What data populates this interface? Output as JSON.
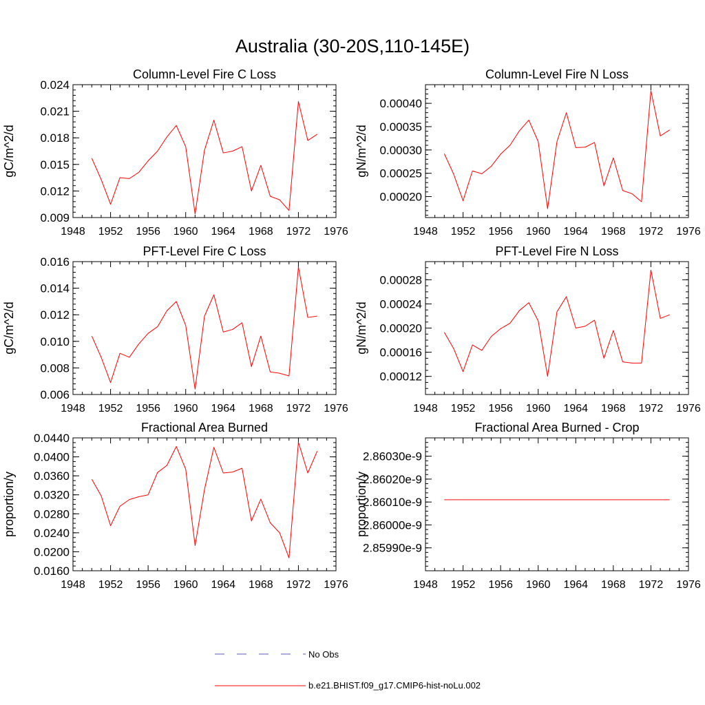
{
  "figure": {
    "title": "Australia (30-20S,110-145E)"
  },
  "legend": {
    "entries": [
      {
        "label": "No Obs",
        "color": "#5a5ab4",
        "style": "dashed"
      },
      {
        "label": "b.e21.BHIST.f09_g17.CMIP6-hist-noLu.002",
        "color": "#ff0000",
        "style": "solid"
      }
    ]
  },
  "chart_data": [
    {
      "type": "line",
      "title": "Column-Level Fire C Loss",
      "ylabel": "gC/m^2/d",
      "xlim": [
        1948,
        1976
      ],
      "xticks": [
        "1948",
        "1952",
        "1956",
        "1960",
        "1964",
        "1968",
        "1972",
        "1976"
      ],
      "ylim": [
        0.009,
        0.024
      ],
      "yticks": [
        "0.009",
        "0.012",
        "0.015",
        "0.018",
        "0.021",
        "0.024"
      ],
      "ytick_values": [
        0.009,
        0.012,
        0.015,
        0.018,
        0.021,
        0.024
      ],
      "yminor_step": 0.0006,
      "series": [
        {
          "color": "#ff0000",
          "x": [
            1950,
            1951,
            1952,
            1953,
            1954,
            1955,
            1956,
            1957,
            1958,
            1959,
            1960,
            1961,
            1962,
            1963,
            1964,
            1965,
            1966,
            1967,
            1968,
            1969,
            1970,
            1971,
            1972,
            1973,
            1974
          ],
          "y": [
            0.0157,
            0.0133,
            0.0105,
            0.0135,
            0.0134,
            0.0141,
            0.0154,
            0.0165,
            0.0181,
            0.0194,
            0.017,
            0.0094,
            0.0166,
            0.02,
            0.0163,
            0.0165,
            0.017,
            0.012,
            0.0149,
            0.0114,
            0.011,
            0.0098,
            0.0221,
            0.0177,
            0.0184
          ]
        }
      ]
    },
    {
      "type": "line",
      "title": "Column-Level Fire N Loss",
      "ylabel": "gN/m^2/d",
      "xlim": [
        1948,
        1976
      ],
      "xticks": [
        "1948",
        "1952",
        "1956",
        "1960",
        "1964",
        "1968",
        "1972",
        "1976"
      ],
      "ylim": [
        0.000155,
        0.00044
      ],
      "yticks": [
        "0.00020",
        "0.00025",
        "0.00030",
        "0.00035",
        "0.00040"
      ],
      "ytick_values": [
        0.0002,
        0.00025,
        0.0003,
        0.00035,
        0.0004
      ],
      "yminor_step": 1e-05,
      "series": [
        {
          "color": "#ff0000",
          "x": [
            1950,
            1951,
            1952,
            1953,
            1954,
            1955,
            1956,
            1957,
            1958,
            1959,
            1960,
            1961,
            1962,
            1963,
            1964,
            1965,
            1966,
            1967,
            1968,
            1969,
            1970,
            1971,
            1972,
            1973,
            1974
          ],
          "y": [
            0.000292,
            0.000248,
            0.000191,
            0.000255,
            0.000249,
            0.000265,
            0.000291,
            0.00031,
            0.000341,
            0.000364,
            0.000318,
            0.000174,
            0.000318,
            0.00038,
            0.000305,
            0.000306,
            0.000316,
            0.000223,
            0.000283,
            0.000213,
            0.000206,
            0.000189,
            0.000427,
            0.00033,
            0.000343
          ]
        }
      ]
    },
    {
      "type": "line",
      "title": "PFT-Level Fire C Loss",
      "ylabel": "gC/m^2/d",
      "xlim": [
        1948,
        1976
      ],
      "xticks": [
        "1948",
        "1952",
        "1956",
        "1960",
        "1964",
        "1968",
        "1972",
        "1976"
      ],
      "ylim": [
        0.006,
        0.016
      ],
      "yticks": [
        "0.006",
        "0.008",
        "0.010",
        "0.012",
        "0.014",
        "0.016"
      ],
      "ytick_values": [
        0.006,
        0.008,
        0.01,
        0.012,
        0.014,
        0.016
      ],
      "yminor_step": 0.0004,
      "series": [
        {
          "color": "#ff0000",
          "x": [
            1950,
            1951,
            1952,
            1953,
            1954,
            1955,
            1956,
            1957,
            1958,
            1959,
            1960,
            1961,
            1962,
            1963,
            1964,
            1965,
            1966,
            1967,
            1968,
            1969,
            1970,
            1971,
            1972,
            1973,
            1974
          ],
          "y": [
            0.0104,
            0.0088,
            0.0069,
            0.0091,
            0.0088,
            0.0098,
            0.0106,
            0.0111,
            0.0123,
            0.013,
            0.0112,
            0.0064,
            0.0119,
            0.0135,
            0.0107,
            0.0109,
            0.0114,
            0.0081,
            0.0104,
            0.0077,
            0.0076,
            0.0074,
            0.0156,
            0.0118,
            0.0119
          ]
        }
      ]
    },
    {
      "type": "line",
      "title": "PFT-Level Fire N Loss",
      "ylabel": "gN/m^2/d",
      "xlim": [
        1948,
        1976
      ],
      "xticks": [
        "1948",
        "1952",
        "1956",
        "1960",
        "1964",
        "1968",
        "1972",
        "1976"
      ],
      "ylim": [
        9e-05,
        0.00031
      ],
      "yticks": [
        "0.00012",
        "0.00016",
        "0.00020",
        "0.00024",
        "0.00028"
      ],
      "ytick_values": [
        0.00012,
        0.00016,
        0.0002,
        0.00024,
        0.00028
      ],
      "yminor_step": 1e-05,
      "series": [
        {
          "color": "#ff0000",
          "x": [
            1950,
            1951,
            1952,
            1953,
            1954,
            1955,
            1956,
            1957,
            1958,
            1959,
            1960,
            1961,
            1962,
            1963,
            1964,
            1965,
            1966,
            1967,
            1968,
            1969,
            1970,
            1971,
            1972,
            1973,
            1974
          ],
          "y": [
            0.000193,
            0.000166,
            0.000128,
            0.000172,
            0.000163,
            0.000186,
            0.000199,
            0.000208,
            0.000229,
            0.000242,
            0.000212,
            0.00012,
            0.000227,
            0.000252,
            0.0002,
            0.000203,
            0.000213,
            0.00015,
            0.000196,
            0.000144,
            0.000142,
            0.000142,
            0.000296,
            0.000216,
            0.000222
          ]
        }
      ]
    },
    {
      "type": "line",
      "title": "Fractional Area Burned",
      "ylabel": "proportion/y",
      "xlim": [
        1948,
        1976
      ],
      "xticks": [
        "1948",
        "1952",
        "1956",
        "1960",
        "1964",
        "1968",
        "1972",
        "1976"
      ],
      "ylim": [
        0.016,
        0.044
      ],
      "yticks": [
        "0.0160",
        "0.0200",
        "0.0240",
        "0.0280",
        "0.0320",
        "0.0360",
        "0.0400",
        "0.0440"
      ],
      "ytick_values": [
        0.016,
        0.02,
        0.024,
        0.028,
        0.032,
        0.036,
        0.04,
        0.044
      ],
      "yminor_step": 0.001,
      "series": [
        {
          "color": "#ff0000",
          "x": [
            1950,
            1951,
            1952,
            1953,
            1954,
            1955,
            1956,
            1957,
            1958,
            1959,
            1960,
            1961,
            1962,
            1963,
            1964,
            1965,
            1966,
            1967,
            1968,
            1969,
            1970,
            1971,
            1972,
            1973,
            1974
          ],
          "y": [
            0.0353,
            0.0318,
            0.0255,
            0.0296,
            0.031,
            0.0316,
            0.032,
            0.0367,
            0.0382,
            0.0422,
            0.0374,
            0.0213,
            0.0331,
            0.042,
            0.0366,
            0.0368,
            0.0376,
            0.0265,
            0.0311,
            0.0261,
            0.024,
            0.0187,
            0.0431,
            0.0366,
            0.0412
          ]
        }
      ]
    },
    {
      "type": "line",
      "title": "Fractional Area Burned - Crop",
      "ylabel": "proportion/y",
      "xlim": [
        1948,
        1976
      ],
      "xticks": [
        "1948",
        "1952",
        "1956",
        "1960",
        "1964",
        "1968",
        "1972",
        "1976"
      ],
      "ylim": [
        2.8598e-09,
        2.86038e-09
      ],
      "yticks": [
        "2.85990e-9",
        "2.86000e-9",
        "2.86010e-9",
        "2.86020e-9",
        "2.86030e-9"
      ],
      "ytick_values": [
        2.8599e-09,
        2.86e-09,
        2.8601e-09,
        2.8602e-09,
        2.8603e-09
      ],
      "yminor_step": 2e-14,
      "series": [
        {
          "color": "#ff0000",
          "x": [
            1950,
            1974
          ],
          "y": [
            2.86011e-09,
            2.86011e-09
          ]
        }
      ]
    }
  ]
}
